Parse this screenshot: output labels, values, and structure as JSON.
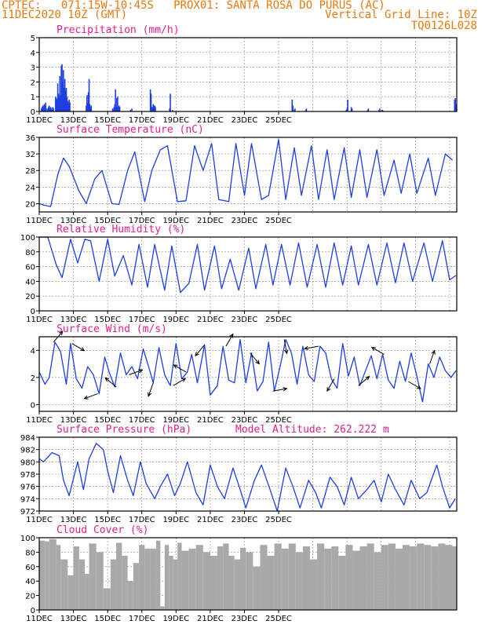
{
  "header": {
    "line1_left": "CPTEC:   071:15W-10:45S   PROX01: SANTA ROSA DO PURUS (AC)",
    "line2_left": "11DEC2020 10Z (GMT)",
    "line2_right": "Vertical Grid Line: 10Z",
    "line3_right": "TQ0126L028"
  },
  "colors": {
    "header": "#e8790e",
    "title": "#e0208a",
    "series": "#1f3ee0",
    "cloud": "#a9a9a9",
    "grid": "#888888"
  },
  "chart_data": [
    {
      "type": "bar",
      "title": "Precipitation (mm/h)",
      "ylim": [
        0,
        5
      ],
      "yticks": [
        0,
        1,
        2,
        3,
        4,
        5
      ],
      "xticks": [
        "11DEC",
        "13DEC",
        "15DEC",
        "17DEC",
        "19DEC",
        "21DEC",
        "23DEC",
        "25DEC"
      ],
      "x_hours_from_start": [
        3,
        4,
        5,
        6,
        7,
        8,
        9,
        11,
        12,
        13,
        14,
        15,
        16,
        17,
        18,
        19,
        20,
        23,
        24,
        25,
        26,
        27,
        28,
        29,
        30,
        31,
        32,
        33,
        34,
        35,
        36,
        37,
        38,
        39,
        40,
        41,
        42,
        43,
        66,
        67,
        68,
        69,
        70,
        71,
        72,
        73,
        103,
        104,
        105,
        106,
        107,
        108,
        109,
        110,
        111,
        112,
        113,
        128,
        130,
        156,
        157,
        158,
        159,
        160,
        161,
        162,
        163,
        183,
        184,
        187,
        355,
        356,
        358,
        359,
        374,
        375,
        431,
        432,
        433,
        438,
        439,
        461,
        462,
        477,
        478,
        481,
        482,
        583,
        584,
        585
      ],
      "values": [
        0.2,
        0.3,
        0.4,
        0.3,
        0.5,
        0.4,
        0.6,
        0.2,
        0.1,
        0.3,
        0.4,
        0.2,
        0.3,
        0.2,
        0.1,
        0.3,
        0.2,
        1.0,
        0.9,
        0.8,
        1.9,
        1.2,
        1.0,
        2.4,
        1.1,
        3.1,
        3.2,
        2.0,
        2.8,
        1.6,
        2.2,
        1.4,
        1.6,
        1.0,
        0.7,
        0.6,
        0.8,
        0.6,
        0.4,
        1.1,
        0.6,
        1.3,
        2.2,
        0.5,
        0.3,
        0.4,
        0.2,
        0.1,
        0.3,
        0.5,
        1.5,
        0.3,
        0.9,
        1.0,
        0.3,
        0.4,
        0.3,
        0.1,
        0.2,
        1.5,
        1.2,
        0.3,
        0.3,
        0.5,
        0.4,
        0.4,
        0.3,
        0.2,
        1.2,
        0.1,
        0.8,
        0.4,
        0.1,
        0.2,
        0.1,
        0.2,
        0.1,
        0.2,
        0.8,
        0.3,
        0.2,
        0.1,
        0.2,
        0.1,
        0.2,
        0.1,
        0.1,
        0.8,
        0.9,
        0.5
      ]
    },
    {
      "type": "line",
      "title": "Surface Temperature (nC)",
      "ylim": [
        18,
        36
      ],
      "yticks": [
        20,
        24,
        28,
        32,
        36
      ],
      "xticks": [
        "11DEC",
        "13DEC",
        "15DEC",
        "17DEC",
        "19DEC",
        "21DEC",
        "23DEC",
        "25DEC"
      ],
      "x_hours_from_start": [
        0,
        8,
        16,
        26,
        34,
        42,
        56,
        66,
        78,
        88,
        102,
        112,
        124,
        134,
        148,
        158,
        170,
        180,
        194,
        206,
        218,
        230,
        242,
        252,
        266,
        276,
        288,
        298,
        312,
        322,
        336,
        346,
        358,
        368,
        382,
        392,
        404,
        414,
        428,
        438,
        450,
        460,
        474,
        484,
        498,
        508,
        520,
        530,
        546,
        556,
        570,
        580
      ],
      "values": [
        20,
        19.6,
        19.3,
        27,
        31,
        29,
        23,
        20,
        26,
        28,
        20,
        19.8,
        28,
        32.5,
        20.5,
        28,
        33,
        34,
        20.5,
        20.7,
        34,
        28,
        34.5,
        21,
        20.5,
        34.5,
        22,
        34.5,
        21,
        22,
        35.5,
        21,
        33.5,
        22,
        34,
        21,
        33,
        21,
        33.5,
        21.5,
        33,
        21.5,
        33,
        22,
        30.5,
        22.5,
        32,
        22.5,
        31,
        22,
        32,
        30.5
      ]
    },
    {
      "type": "line",
      "title": "Relative Humidity (%)",
      "ylim": [
        0,
        100
      ],
      "yticks": [
        0,
        20,
        40,
        60,
        80,
        100
      ],
      "xticks": [
        "11DEC",
        "13DEC",
        "15DEC",
        "17DEC",
        "19DEC",
        "21DEC",
        "23DEC",
        "25DEC"
      ],
      "x_hours_from_start": [
        0,
        12,
        24,
        32,
        44,
        54,
        64,
        72,
        84,
        96,
        106,
        118,
        130,
        140,
        152,
        162,
        176,
        186,
        198,
        210,
        222,
        232,
        246,
        256,
        268,
        280,
        294,
        304,
        318,
        328,
        340,
        352,
        364,
        376,
        390,
        402,
        414,
        426,
        438,
        448,
        462,
        474,
        488,
        500,
        512,
        524,
        540,
        552,
        566,
        576,
        585
      ],
      "values": [
        100,
        100,
        62,
        45,
        97,
        65,
        97,
        95,
        40,
        97,
        47,
        75,
        35,
        90,
        32,
        90,
        28,
        88,
        25,
        37,
        90,
        28,
        88,
        30,
        70,
        28,
        85,
        30,
        90,
        35,
        90,
        35,
        92,
        32,
        90,
        32,
        92,
        35,
        88,
        35,
        90,
        35,
        92,
        38,
        92,
        40,
        92,
        40,
        95,
        42,
        48
      ]
    },
    {
      "type": "line",
      "title": "Surface Wind (m/s)",
      "ylim": [
        -0.5,
        5
      ],
      "yticks": [
        0,
        2,
        4
      ],
      "xticks": [
        "11DEC",
        "13DEC",
        "15DEC",
        "17DEC",
        "19DEC",
        "21DEC",
        "23DEC",
        "25DEC"
      ],
      "x_hours_from_start": [
        0,
        8,
        14,
        22,
        30,
        38,
        44,
        52,
        60,
        68,
        76,
        84,
        92,
        98,
        106,
        114,
        122,
        130,
        138,
        146,
        154,
        160,
        168,
        176,
        184,
        192,
        200,
        208,
        214,
        222,
        232,
        240,
        250,
        258,
        266,
        274,
        282,
        290,
        298,
        306,
        314,
        322,
        330,
        338,
        346,
        354,
        362,
        370,
        378,
        386,
        394,
        402,
        410,
        418,
        426,
        434,
        442,
        450,
        458,
        466,
        474,
        482,
        490,
        498,
        506,
        514,
        522,
        530,
        538,
        546,
        554,
        562,
        570,
        578,
        585
      ],
      "values": [
        2.4,
        1.5,
        2,
        4.6,
        3.9,
        1.5,
        4.5,
        1.9,
        1.2,
        2.8,
        2.2,
        0.8,
        3.5,
        2.4,
        1.3,
        3.8,
        2.2,
        2.8,
        1.9,
        4.1,
        2.7,
        1.6,
        4.2,
        2.2,
        1.4,
        4.5,
        1.9,
        2.4,
        3.7,
        1.6,
        4.4,
        0.7,
        1.4,
        4.3,
        1.8,
        1.6,
        4.8,
        1.6,
        3.8,
        1,
        1.7,
        4.6,
        1,
        2.8,
        4.8,
        3.8,
        1.5,
        4.3,
        2.2,
        1.7,
        4.3,
        3.8,
        1.9,
        1.2,
        4.5,
        2.1,
        3.5,
        1.4,
        2.5,
        3.6,
        1.9,
        3.7,
        1.8,
        1.2,
        3.2,
        1.7,
        3.8,
        2.1,
        0.2,
        3,
        2,
        3.5,
        2.5,
        2,
        2.5
      ],
      "arrow_hours": [
        20,
        46,
        82,
        108,
        126,
        160,
        188,
        206,
        232,
        262,
        296,
        328,
        344,
        392,
        414,
        448,
        484,
        518,
        548
      ],
      "arrow_dirs_deg": [
        40,
        120,
        250,
        310,
        70,
        200,
        60,
        300,
        220,
        30,
        140,
        80,
        170,
        260,
        210,
        50,
        300,
        120,
        20
      ]
    },
    {
      "type": "line",
      "title": "Surface Pressure (hPa)",
      "annotation": "Model Altitude: 262.222 m",
      "ylim": [
        972,
        984
      ],
      "yticks": [
        972,
        974,
        976,
        978,
        980,
        982,
        984
      ],
      "xticks": [
        "11DEC",
        "13DEC",
        "15DEC",
        "17DEC",
        "19DEC",
        "21DEC",
        "23DEC",
        "25DEC"
      ],
      "x_hours_from_start": [
        0,
        6,
        18,
        28,
        34,
        42,
        54,
        62,
        70,
        80,
        90,
        96,
        104,
        114,
        124,
        132,
        142,
        150,
        162,
        170,
        180,
        190,
        198,
        208,
        220,
        230,
        240,
        250,
        260,
        272,
        282,
        290,
        302,
        312,
        324,
        334,
        346,
        356,
        366,
        378,
        388,
        396,
        408,
        418,
        428,
        438,
        448,
        460,
        470,
        480,
        490,
        500,
        512,
        522,
        534,
        544,
        558,
        566,
        576,
        584
      ],
      "values": [
        980.5,
        980,
        981.5,
        981,
        977,
        974.5,
        980,
        975.5,
        980.5,
        983,
        982,
        978.5,
        975,
        981,
        977,
        974.5,
        980,
        976.5,
        974,
        976,
        978,
        974.5,
        976.5,
        980,
        975,
        973,
        979.5,
        976,
        974,
        979,
        975.5,
        972.5,
        977,
        979.5,
        975.5,
        972,
        979,
        976,
        972.5,
        977,
        975,
        972.5,
        977.5,
        976,
        973,
        977.5,
        974,
        975.5,
        977,
        973.5,
        978,
        975.5,
        973,
        977,
        974,
        975,
        979.5,
        976,
        972.5,
        974
      ]
    },
    {
      "type": "bar",
      "title": "Cloud Cover (%)",
      "ylim": [
        0,
        100
      ],
      "yticks": [
        0,
        20,
        40,
        60,
        80,
        100
      ],
      "xticks": [
        "11DEC",
        "13DEC",
        "15DEC",
        "17DEC",
        "19DEC",
        "21DEC",
        "23DEC",
        "25DEC"
      ],
      "x_hours_from_start": [
        0,
        8,
        14,
        24,
        30,
        40,
        48,
        56,
        64,
        70,
        80,
        90,
        100,
        108,
        116,
        124,
        132,
        140,
        148,
        156,
        164,
        170,
        176,
        182,
        188,
        194,
        200,
        210,
        220,
        230,
        240,
        250,
        258,
        266,
        274,
        282,
        290,
        300,
        310,
        320,
        330,
        340,
        350,
        360,
        370,
        380,
        390,
        400,
        410,
        420,
        430,
        440,
        450,
        460,
        470,
        480,
        490,
        500,
        510,
        520,
        530,
        540,
        550,
        560,
        570,
        580
      ],
      "values": [
        96,
        95,
        98,
        90,
        70,
        48,
        88,
        70,
        50,
        92,
        80,
        30,
        70,
        93,
        75,
        40,
        65,
        90,
        85,
        85,
        96,
        5,
        90,
        75,
        70,
        93,
        82,
        85,
        90,
        80,
        75,
        88,
        92,
        75,
        70,
        86,
        80,
        60,
        90,
        75,
        92,
        85,
        92,
        80,
        88,
        70,
        92,
        85,
        88,
        75,
        90,
        82,
        88,
        92,
        80,
        90,
        92,
        85,
        90,
        88,
        92,
        90,
        88,
        92,
        90,
        88
      ]
    }
  ]
}
